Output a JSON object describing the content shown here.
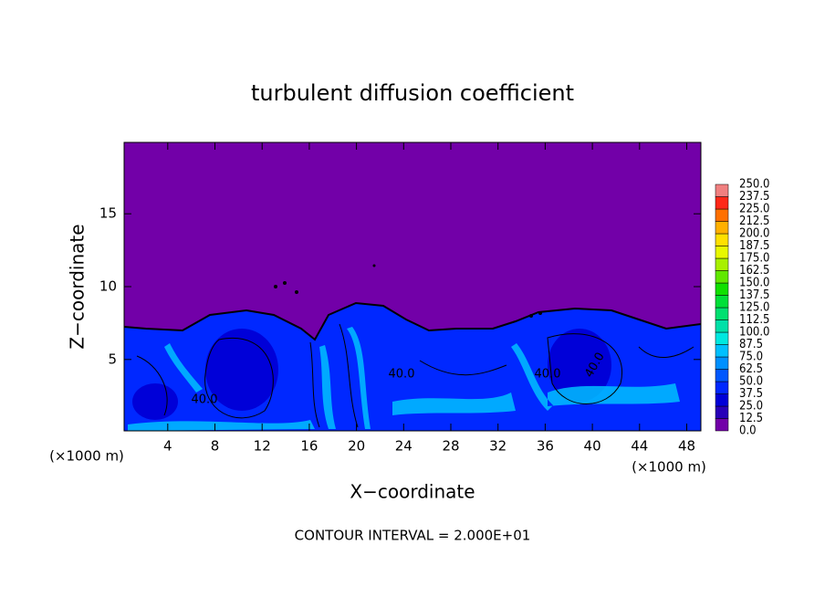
{
  "chart_data": {
    "type": "contour",
    "title": "turbulent diffusion coefficient",
    "x_label": "X−coordinate",
    "y_label": "Z−coordinate",
    "x_unit_label": "(×1000 m)",
    "y_unit_label": "(×1000 m)",
    "footer": "CONTOUR INTERVAL = 2.000E+01",
    "xlim": [
      0.3,
      49.2
    ],
    "ylim": [
      0.1,
      19.9
    ],
    "xticks": [
      4,
      8,
      12,
      16,
      20,
      24,
      28,
      32,
      36,
      40,
      44,
      48
    ],
    "yticks": [
      5,
      10,
      15
    ],
    "contour_labels": [
      "40.0",
      "40.0",
      "40.0",
      "40.0"
    ],
    "colorbar_levels": [
      {
        "value": 0,
        "label": "0.0"
      },
      {
        "value": 12.5,
        "label": "12.5"
      },
      {
        "value": 25,
        "label": "25.0"
      },
      {
        "value": 37.5,
        "label": "37.5"
      },
      {
        "value": 50,
        "label": "50.0"
      },
      {
        "value": 62.5,
        "label": "62.5"
      },
      {
        "value": 75,
        "label": "75.0"
      },
      {
        "value": 87.5,
        "label": "87.5"
      },
      {
        "value": 100,
        "label": "100.0"
      },
      {
        "value": 112.5,
        "label": "112.5"
      },
      {
        "value": 125,
        "label": "125.0"
      },
      {
        "value": 137.5,
        "label": "137.5"
      },
      {
        "value": 150,
        "label": "150.0"
      },
      {
        "value": 162.5,
        "label": "162.5"
      },
      {
        "value": 175,
        "label": "175.0"
      },
      {
        "value": 187.5,
        "label": "187.5"
      },
      {
        "value": 200,
        "label": "200.0"
      },
      {
        "value": 212.5,
        "label": "212.5"
      },
      {
        "value": 225,
        "label": "225.0"
      },
      {
        "value": 237.5,
        "label": "237.5"
      },
      {
        "value": 250,
        "label": "250.0"
      }
    ],
    "colorbar_colors": [
      "#7200a8",
      "#2800b8",
      "#0000d8",
      "#0028ff",
      "#0058ff",
      "#0090ff",
      "#00c0ff",
      "#00e8e0",
      "#00e0a8",
      "#00e070",
      "#00e038",
      "#10e000",
      "#60e800",
      "#a8f000",
      "#e8f800",
      "#ffe000",
      "#ffb000",
      "#ff7000",
      "#ff2818",
      "#f08080"
    ]
  }
}
